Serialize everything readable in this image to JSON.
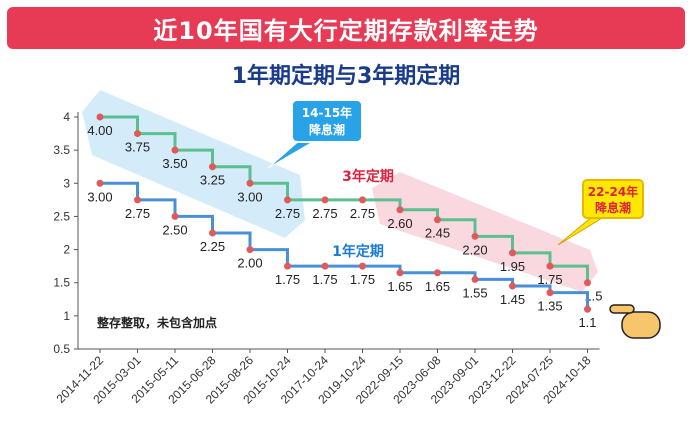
{
  "page_title": "近10年国有大行定期存款利率走势",
  "subtitle": "1年期定期与3年期定期",
  "chart_data": {
    "type": "line",
    "step": true,
    "x": [
      "2014-11-22",
      "2015-03-01",
      "2015-05-11",
      "2015-06-28",
      "2015-08-26",
      "2015-10-24",
      "2017-10-24",
      "2019-10-24",
      "2022-09-15",
      "2023-06-08",
      "2023-09-01",
      "2023-12-22",
      "2024-07-25",
      "2024-10-18"
    ],
    "ylim": [
      0.5,
      4
    ],
    "yticks": [
      "0.5",
      "1",
      "1.5",
      "2",
      "2.5",
      "3",
      "3.5",
      "4"
    ],
    "grid": false,
    "series": [
      {
        "name": "3年定期",
        "color": "#5cbf8f",
        "label_color": "#e0203c",
        "values": [
          4.0,
          3.75,
          3.5,
          3.25,
          3.0,
          2.75,
          2.75,
          2.75,
          2.6,
          2.45,
          2.2,
          1.95,
          1.75,
          1.5
        ],
        "labels": [
          "4.00",
          "3.75",
          "3.50",
          "3.25",
          "3.00",
          "2.75",
          "2.75",
          "2.75",
          "2.60",
          "2.45",
          "2.20",
          "1.95",
          "1.75",
          "1.5"
        ]
      },
      {
        "name": "1年定期",
        "color": "#4a90d9",
        "label_color": "#1a7cd6",
        "values": [
          3.0,
          2.75,
          2.5,
          2.25,
          2.0,
          1.75,
          1.75,
          1.75,
          1.65,
          1.65,
          1.55,
          1.45,
          1.35,
          1.1
        ],
        "labels": [
          "3.00",
          "2.75",
          "2.50",
          "2.25",
          "2.00",
          "1.75",
          "1.75",
          "1.75",
          "1.65",
          "1.65",
          "1.55",
          "1.45",
          "1.35",
          "1.1"
        ]
      }
    ],
    "annotations": {
      "callout_left": "14-15年\n降息潮",
      "callout_right": "22-24年\n降息潮",
      "note": "整存整取，未包含加点"
    },
    "colors": {
      "marker": "#e05a5a",
      "highlight_left": "#cfe9f9",
      "highlight_right": "#f9d4dc",
      "callout_left_bg": "#29a3e8",
      "callout_right_bg": "#ffe800",
      "callout_right_text": "#e0203c"
    }
  }
}
